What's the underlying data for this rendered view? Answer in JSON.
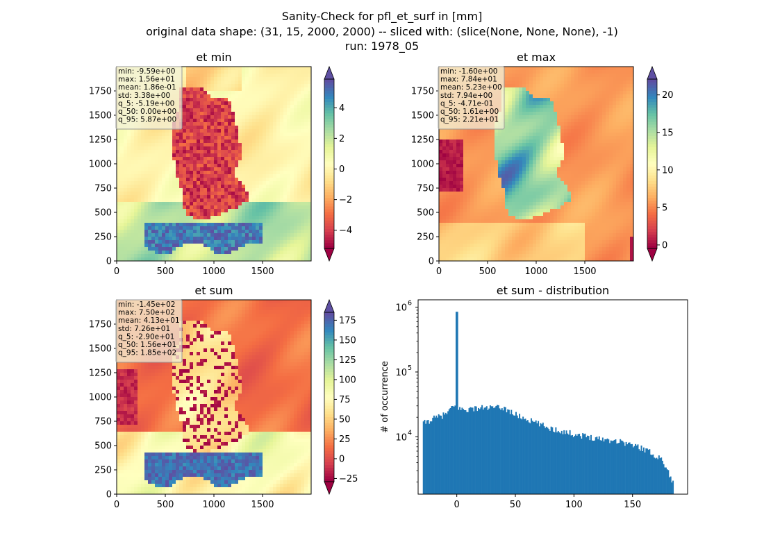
{
  "suptitle": [
    "Sanity-Check for pfl_et_surf in [mm]",
    "original data shape: (31, 15, 2000, 2000) -- sliced with: (slice(None, None, None), -1)",
    "run: 1978_05"
  ],
  "colors": {
    "hist_bar": "#1f77b4",
    "cmap": "Spectral"
  },
  "panels": [
    {
      "id": "et-min",
      "title": "et min",
      "x_ticks": [
        "0",
        "500",
        "1000",
        "1500"
      ],
      "y_ticks": [
        "0",
        "250",
        "500",
        "750",
        "1000",
        "1250",
        "1500",
        "1750"
      ],
      "stats": [
        "min: -9.59e+00",
        "max: 1.56e+01",
        "mean: 1.86e-01",
        "std: 3.38e+00",
        "q_5: -5.19e+00",
        "q_50: 0.00e+00",
        "q_95: 5.87e+00"
      ],
      "colorbar": {
        "vmin": -5.19,
        "vmax": 5.87,
        "tick_values": [
          -4,
          -2,
          0,
          2,
          4
        ],
        "tick_labels": [
          "−4",
          "−2",
          "0",
          "2",
          "4"
        ]
      }
    },
    {
      "id": "et-max",
      "title": "et max",
      "x_ticks": [
        "0",
        "500",
        "1000",
        "1500"
      ],
      "y_ticks": [
        "0",
        "250",
        "500",
        "750",
        "1000",
        "1250",
        "1500",
        "1750"
      ],
      "stats": [
        "min: -1.60e+00",
        "max: 7.84e+01",
        "mean: 5.23e+00",
        "std: 7.94e+00",
        "q_5: -4.71e-01",
        "q_50: 1.61e+00",
        "q_95: 2.21e+01"
      ],
      "colorbar": {
        "vmin": -0.471,
        "vmax": 22.1,
        "tick_values": [
          0,
          5,
          10,
          15,
          20
        ],
        "tick_labels": [
          "0",
          "5",
          "10",
          "15",
          "20"
        ]
      }
    },
    {
      "id": "et-sum",
      "title": "et sum",
      "x_ticks": [
        "0",
        "500",
        "1000",
        "1500"
      ],
      "y_ticks": [
        "0",
        "250",
        "500",
        "750",
        "1000",
        "1250",
        "1500",
        "1750"
      ],
      "stats": [
        "min: -1.45e+02",
        "max: 7.50e+02",
        "mean: 4.13e+01",
        "std: 7.26e+01",
        "q_5: -2.90e+01",
        "q_50: 1.56e+01",
        "q_95: 1.85e+02"
      ],
      "colorbar": {
        "vmin": -29.0,
        "vmax": 185.0,
        "tick_values": [
          -25,
          0,
          25,
          50,
          75,
          100,
          125,
          150,
          175
        ],
        "tick_labels": [
          "−25",
          "0",
          "25",
          "50",
          "75",
          "100",
          "125",
          "150",
          "175"
        ]
      }
    }
  ],
  "chart_data": {
    "type": "bar",
    "title": "et sum - distribution",
    "xlabel": "",
    "ylabel": "# of occurrence",
    "yscale": "log",
    "xlim": [
      -33,
      197
    ],
    "ylim": [
      1300,
      1300000
    ],
    "x_ticks": [
      0,
      50,
      100,
      150
    ],
    "x_tick_labels": [
      "0",
      "50",
      "100",
      "150"
    ],
    "y_ticks": [
      10000,
      100000,
      1000000
    ],
    "y_tick_labels": [
      "10",
      "10",
      "10"
    ],
    "y_tick_exponents": [
      "4",
      "5",
      "6"
    ],
    "bin_range": [
      -29,
      185
    ],
    "spike": {
      "x": 0,
      "count": 850000
    },
    "profile_points": [
      {
        "x": -29,
        "count": 16000
      },
      {
        "x": -20,
        "count": 19000
      },
      {
        "x": -10,
        "count": 22000
      },
      {
        "x": -2,
        "count": 30000
      },
      {
        "x": 5,
        "count": 26000
      },
      {
        "x": 20,
        "count": 28000
      },
      {
        "x": 40,
        "count": 28000
      },
      {
        "x": 50,
        "count": 22000
      },
      {
        "x": 60,
        "count": 18500
      },
      {
        "x": 80,
        "count": 13500
      },
      {
        "x": 100,
        "count": 11000
      },
      {
        "x": 120,
        "count": 9500
      },
      {
        "x": 140,
        "count": 8500
      },
      {
        "x": 160,
        "count": 6500
      },
      {
        "x": 175,
        "count": 4500
      },
      {
        "x": 182,
        "count": 2500
      },
      {
        "x": 185,
        "count": 1800
      }
    ]
  }
}
